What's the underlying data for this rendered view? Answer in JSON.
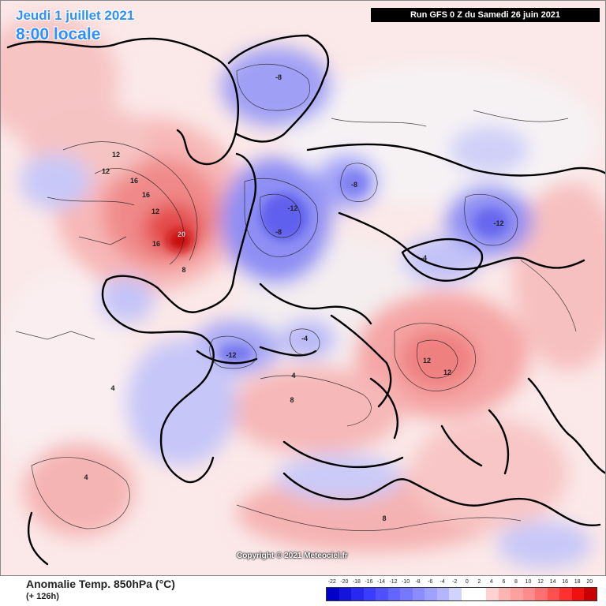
{
  "header": {
    "date": "Jeudi 1 juillet 2021",
    "time": "8:00 locale",
    "run": "Run GFS 0 Z du Samedi 26 juin 2021"
  },
  "footer": {
    "variable": "Anomalie Temp. 850hPa (°C)",
    "lead": "(+ 126h)",
    "copyright": "Copyright © 2021 Meteociel.fr"
  },
  "scale": {
    "ticks": [
      "-22",
      "-20",
      "-18",
      "-16",
      "-14",
      "-12",
      "-10",
      "-8",
      "-6",
      "-4",
      "-2",
      "0",
      "2",
      "4",
      "6",
      "8",
      "10",
      "12",
      "14",
      "16",
      "18",
      "20"
    ],
    "colors": [
      "#0000c8",
      "#1414dc",
      "#2828f0",
      "#3c3cff",
      "#5050ff",
      "#6464ff",
      "#7878ff",
      "#8c8cff",
      "#a0a0ff",
      "#b4b4ff",
      "#d2d2ff",
      "#ffffff",
      "#ffffff",
      "#ffd2d2",
      "#ffb4b4",
      "#ffa0a0",
      "#ff8c8c",
      "#ff7070",
      "#ff5050",
      "#ff3030",
      "#f01010",
      "#c80000"
    ]
  },
  "map_labels": {
    "warm_20": "20",
    "warm_16a": "16",
    "warm_16b": "16",
    "warm_16c": "16",
    "warm_12a": "12",
    "warm_12b": "12",
    "warm_12c": "12",
    "warm_12d": "12",
    "warm_12e": "12",
    "warm_8a": "8",
    "warm_8b": "8",
    "warm_8c": "8",
    "cold_12a": "-12",
    "cold_12b": "-12",
    "cold_12c": "-12",
    "cold_8a": "-8",
    "cold_8b": "-8",
    "cold_8c": "-8",
    "cold_4a": "-4",
    "cold_4b": "-4",
    "pos_4a": "4",
    "pos_4b": "4",
    "pos_4c": "4"
  }
}
